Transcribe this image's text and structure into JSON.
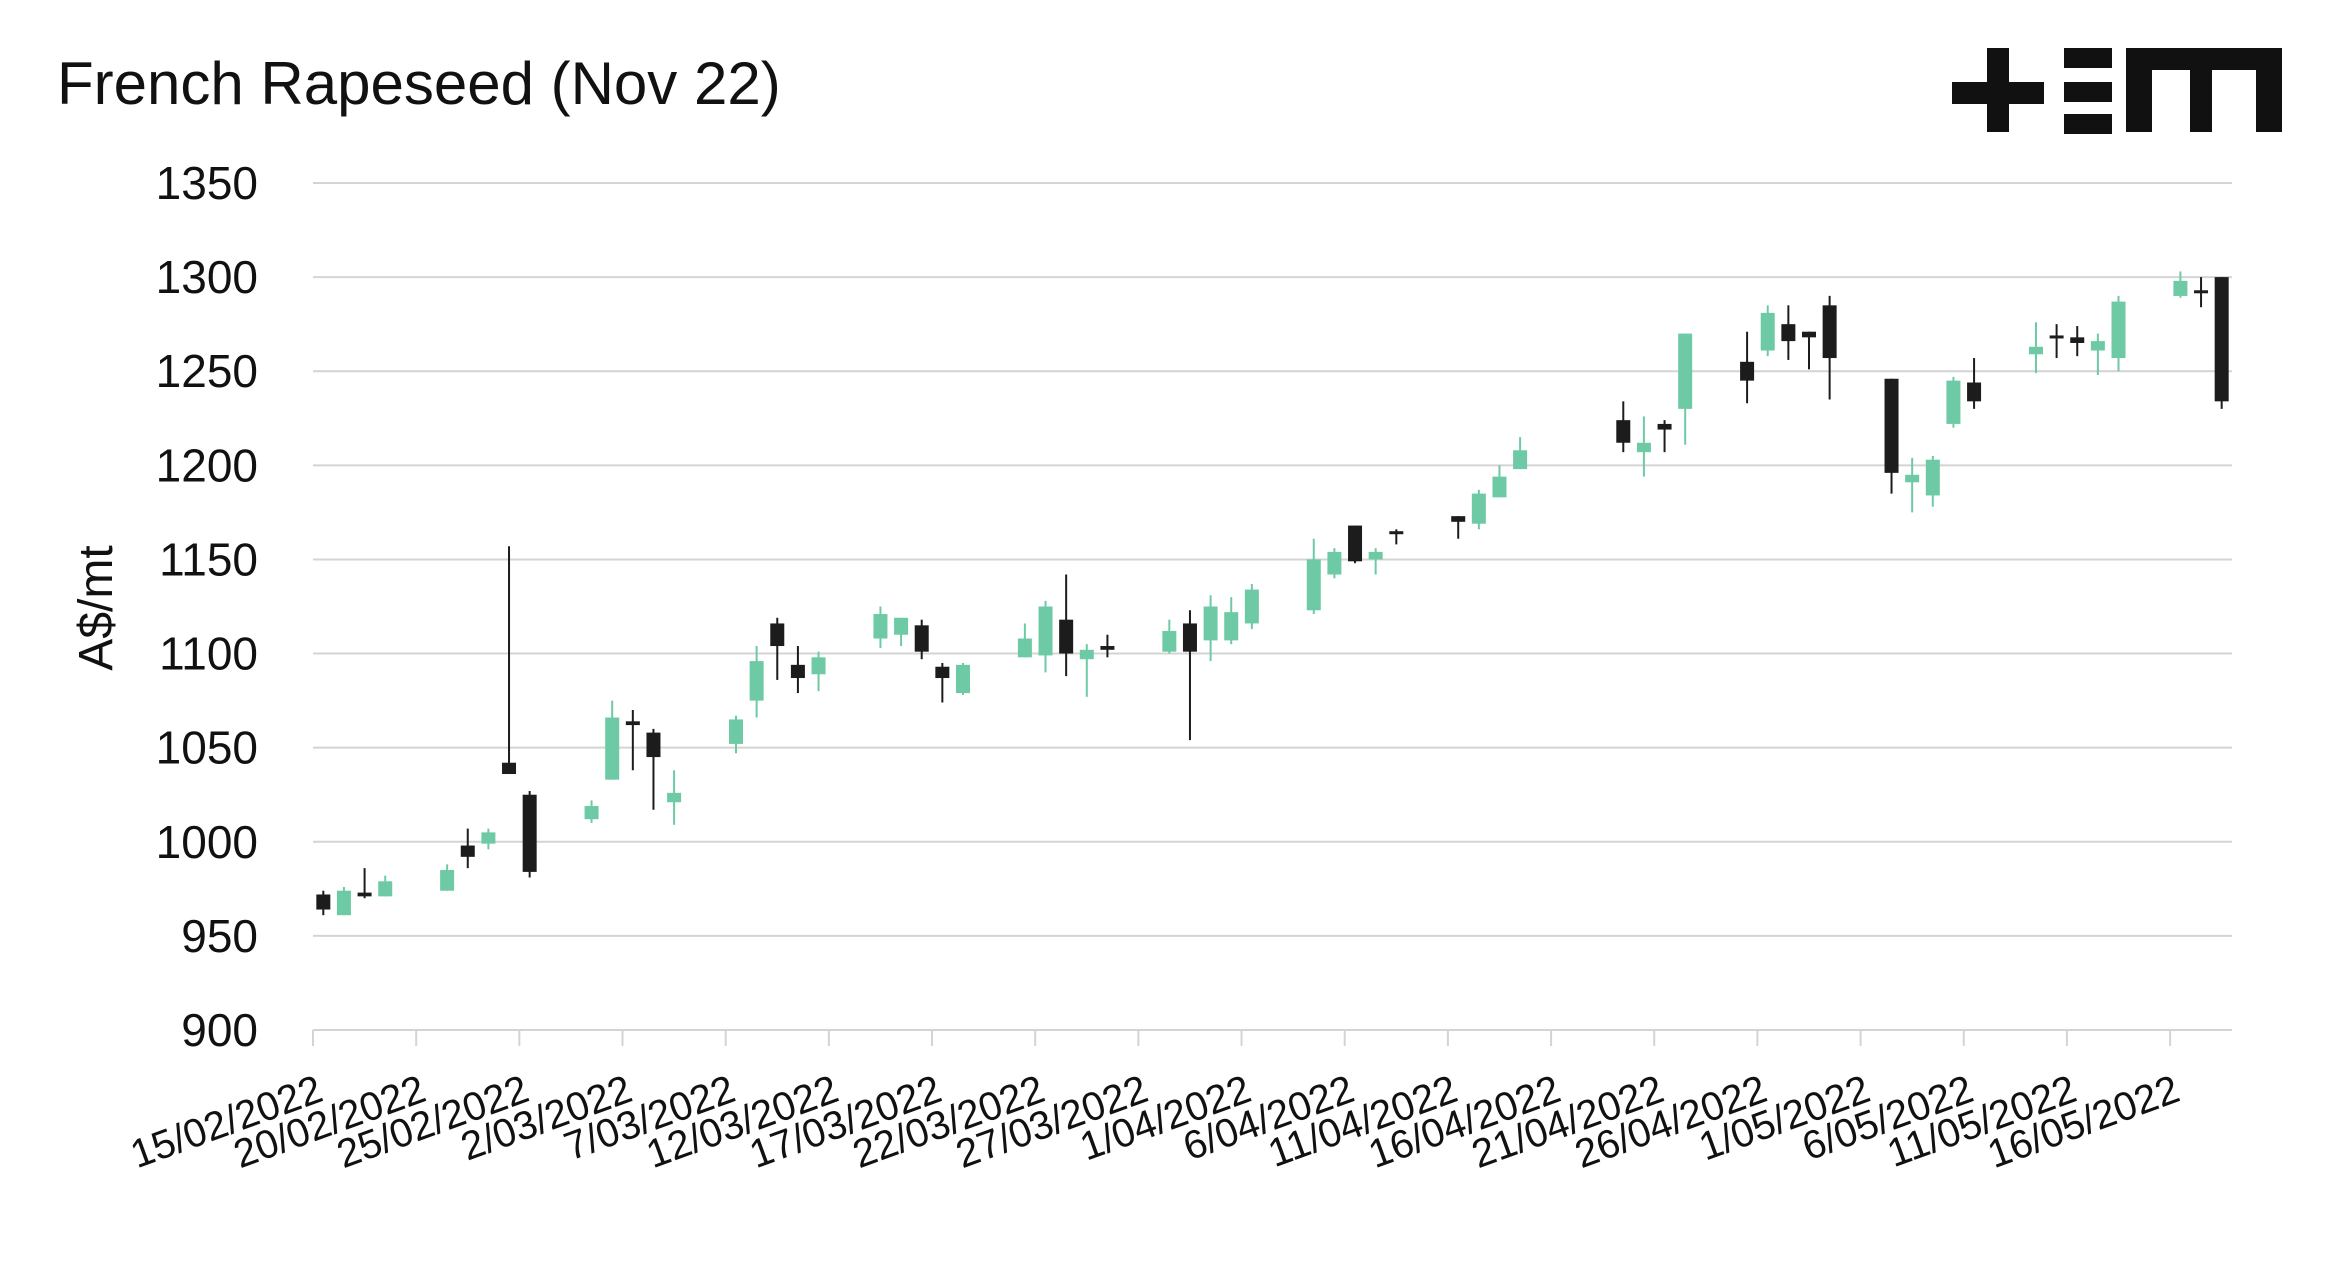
{
  "chart_data": {
    "type": "candlestick",
    "title": "French Rapeseed (Nov 22)",
    "y_label": "A$/mt",
    "x": [
      "15/02/2022",
      "16/02/2022",
      "17/02/2022",
      "18/02/2022",
      "21/02/2022",
      "22/02/2022",
      "23/02/2022",
      "24/02/2022",
      "25/02/2022",
      "28/02/2022",
      "1/03/2022",
      "2/03/2022",
      "3/03/2022",
      "4/03/2022",
      "7/03/2022",
      "8/03/2022",
      "9/03/2022",
      "10/03/2022",
      "11/03/2022",
      "14/03/2022",
      "15/03/2022",
      "16/03/2022",
      "17/03/2022",
      "18/03/2022",
      "21/03/2022",
      "22/03/2022",
      "23/03/2022",
      "24/03/2022",
      "25/03/2022",
      "28/03/2022",
      "29/03/2022",
      "30/03/2022",
      "31/03/2022",
      "1/04/2022",
      "4/04/2022",
      "5/04/2022",
      "6/04/2022",
      "7/04/2022",
      "8/04/2022",
      "11/04/2022",
      "12/04/2022",
      "13/04/2022",
      "14/04/2022",
      "19/04/2022",
      "20/04/2022",
      "21/04/2022",
      "22/04/2022",
      "25/04/2022",
      "26/04/2022",
      "27/04/2022",
      "28/04/2022",
      "29/04/2022",
      "2/05/2022",
      "3/05/2022",
      "4/05/2022",
      "5/05/2022",
      "6/05/2022",
      "9/05/2022",
      "10/05/2022",
      "11/05/2022",
      "12/05/2022",
      "13/05/2022",
      "16/05/2022",
      "17/05/2022",
      "18/05/2022"
    ],
    "open": [
      972,
      961,
      973,
      971,
      974,
      998,
      999,
      1042,
      1025,
      1012,
      1033,
      1064,
      1058,
      1021,
      1052,
      1075,
      1116,
      1094,
      1089,
      1108,
      1110,
      1115,
      1093,
      1079,
      1098,
      1099,
      1118,
      1097,
      1104,
      1101,
      1116,
      1107,
      1107,
      1116,
      1123,
      1142,
      1168,
      1150,
      1165,
      1173,
      1169,
      1183,
      1198,
      1224,
      1207,
      1222,
      1230,
      1255,
      1261,
      1275,
      1271,
      1285,
      1246,
      1191,
      1184,
      1222,
      1244,
      1259,
      1269,
      1268,
      1261,
      1257,
      1290,
      1293,
      1300
    ],
    "high": [
      974,
      976,
      986,
      982,
      988,
      1007,
      1007,
      1157,
      1027,
      1022,
      1075,
      1070,
      1060,
      1038,
      1067,
      1104,
      1119,
      1104,
      1101,
      1125,
      1119,
      1118,
      1095,
      1095,
      1116,
      1128,
      1142,
      1105,
      1110,
      1118,
      1123,
      1131,
      1130,
      1137,
      1161,
      1156,
      1168,
      1156,
      1166,
      1173,
      1187,
      1200,
      1215,
      1234,
      1226,
      1224,
      1270,
      1271,
      1285,
      1285,
      1271,
      1290,
      1246,
      1204,
      1205,
      1247,
      1257,
      1276,
      1275,
      1274,
      1270,
      1290,
      1303,
      1300,
      1300
    ],
    "low": [
      961,
      961,
      970,
      971,
      974,
      986,
      996,
      1036,
      981,
      1010,
      1033,
      1038,
      1017,
      1009,
      1047,
      1066,
      1086,
      1079,
      1080,
      1103,
      1104,
      1097,
      1074,
      1078,
      1098,
      1090,
      1088,
      1077,
      1098,
      1100,
      1054,
      1096,
      1105,
      1113,
      1121,
      1140,
      1148,
      1142,
      1158,
      1161,
      1166,
      1183,
      1198,
      1207,
      1194,
      1207,
      1211,
      1233,
      1258,
      1256,
      1251,
      1235,
      1185,
      1175,
      1178,
      1220,
      1230,
      1249,
      1257,
      1258,
      1248,
      1250,
      1289,
      1284,
      1230
    ],
    "close": [
      964,
      974,
      971,
      979,
      985,
      992,
      1005,
      1036,
      984,
      1019,
      1066,
      1062,
      1045,
      1026,
      1065,
      1096,
      1104,
      1087,
      1098,
      1121,
      1119,
      1101,
      1087,
      1094,
      1108,
      1125,
      1100,
      1102,
      1102,
      1112,
      1101,
      1125,
      1122,
      1134,
      1150,
      1154,
      1149,
      1154,
      1164,
      1170,
      1185,
      1194,
      1208,
      1212,
      1212,
      1219,
      1270,
      1245,
      1281,
      1266,
      1268,
      1257,
      1196,
      1195,
      1203,
      1245,
      1234,
      1263,
      1268,
      1265,
      1266,
      1287,
      1298,
      1292,
      1234
    ],
    "up_color": "#6dcaa5",
    "down_color": "#1c1c1c",
    "xlim": [
      "15/02/2022",
      "19/05/2022"
    ],
    "xticks": [
      "15/02/2022",
      "20/02/2022",
      "25/02/2022",
      "2/03/2022",
      "7/03/2022",
      "12/03/2022",
      "17/03/2022",
      "22/03/2022",
      "27/03/2022",
      "1/04/2022",
      "6/04/2022",
      "11/04/2022",
      "16/04/2022",
      "21/04/2022",
      "26/04/2022",
      "1/05/2022",
      "6/05/2022",
      "11/05/2022",
      "16/05/2022"
    ],
    "ylim": [
      900,
      1350
    ],
    "yticks": [
      900,
      950,
      1000,
      1050,
      1100,
      1150,
      1200,
      1250,
      1300,
      1350
    ],
    "grid": true
  }
}
